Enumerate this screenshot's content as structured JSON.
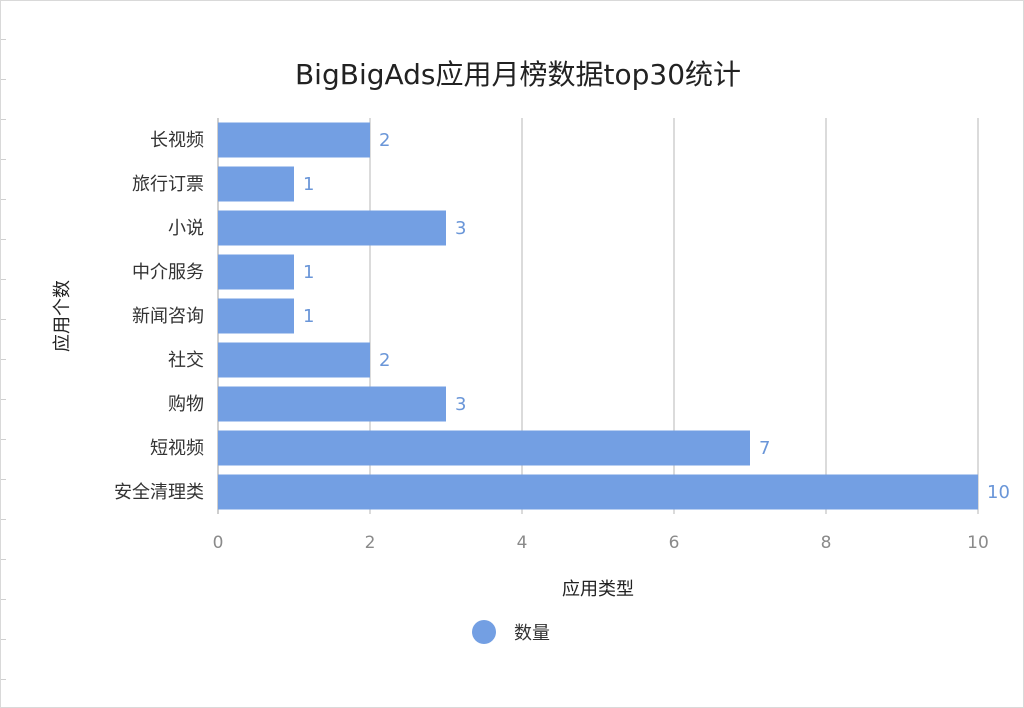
{
  "chart_data": {
    "type": "bar",
    "orientation": "horizontal",
    "title": "BigBigAds应用月榜数据top30统计",
    "xlabel": "应用类型",
    "ylabel": "应用个数",
    "categories": [
      "长视频",
      "旅行订票",
      "小说",
      "中介服务",
      "新闻咨询",
      "社交",
      "购物",
      "短视频",
      "安全清理类"
    ],
    "series": [
      {
        "name": "数量",
        "values": [
          2,
          1,
          3,
          1,
          1,
          2,
          3,
          7,
          10
        ]
      }
    ],
    "xlim": [
      0,
      10
    ],
    "xticks": [
      0,
      2,
      4,
      6,
      8,
      10
    ],
    "grid": true,
    "legend": "bottom-center",
    "bar_color": "#739fe3",
    "label_color": "#6a96d8"
  }
}
